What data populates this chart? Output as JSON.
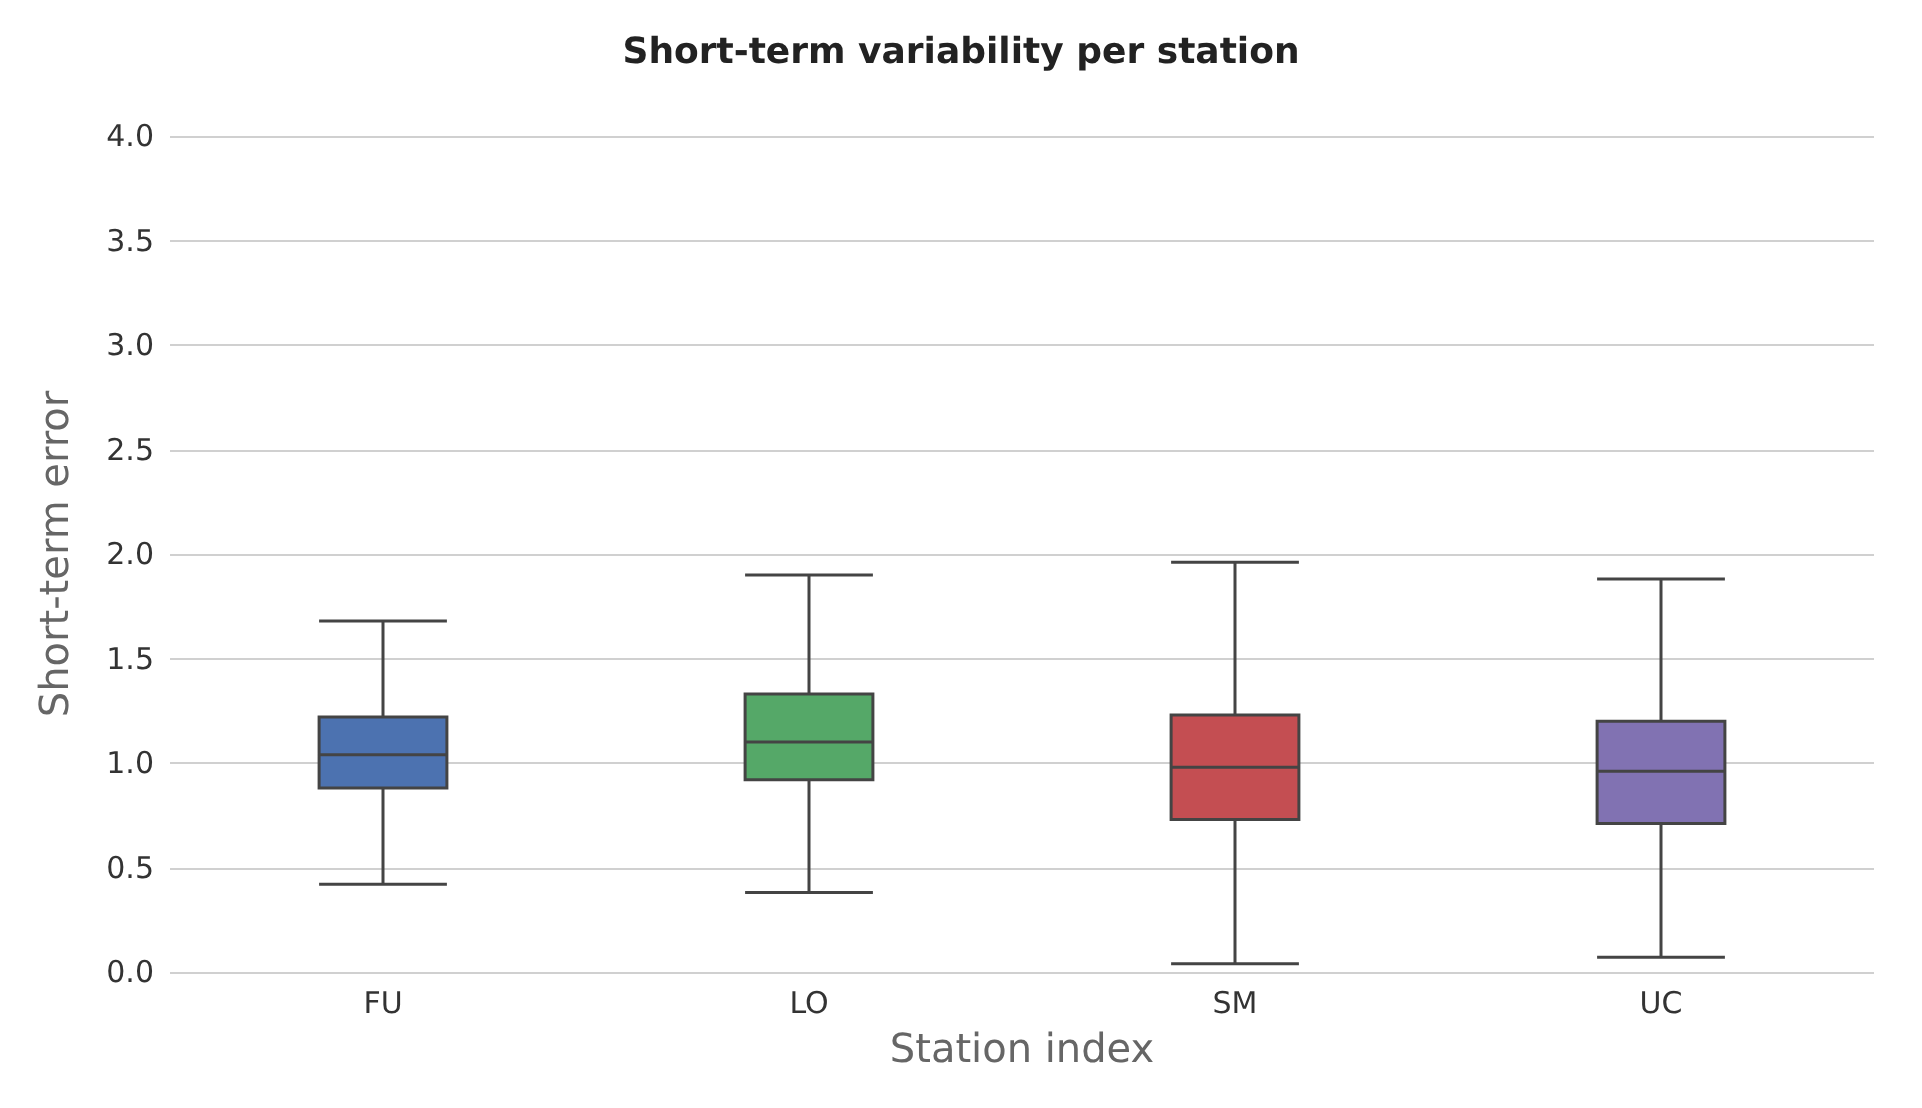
{
  "chart_data": {
    "type": "box",
    "title": "Short-term variability per station",
    "xlabel": "Station index",
    "ylabel": "Short-term error",
    "categories": [
      "FU",
      "LO",
      "SM",
      "UC"
    ],
    "colors": [
      "#4c72b0",
      "#55a868",
      "#c44e52",
      "#8172b2"
    ],
    "boxes": [
      {
        "low": 0.42,
        "q1": 0.88,
        "median": 1.04,
        "q3": 1.22,
        "high": 1.68
      },
      {
        "low": 0.38,
        "q1": 0.92,
        "median": 1.1,
        "q3": 1.33,
        "high": 1.9
      },
      {
        "low": 0.04,
        "q1": 0.73,
        "median": 0.98,
        "q3": 1.23,
        "high": 1.96
      },
      {
        "low": 0.07,
        "q1": 0.71,
        "median": 0.96,
        "q3": 1.2,
        "high": 1.88
      }
    ],
    "ylim": [
      0,
      4
    ],
    "yticks": [
      {
        "value": 0,
        "label": "0.0"
      },
      {
        "value": 0.5,
        "label": "0.5"
      },
      {
        "value": 1,
        "label": "1.0"
      },
      {
        "value": 1.5,
        "label": "1.5"
      },
      {
        "value": 2,
        "label": "2.0"
      },
      {
        "value": 2.5,
        "label": "2.5"
      },
      {
        "value": 3,
        "label": "3.0"
      },
      {
        "value": 3.5,
        "label": "3.5"
      },
      {
        "value": 4,
        "label": "4.0"
      }
    ],
    "grid": "y"
  }
}
